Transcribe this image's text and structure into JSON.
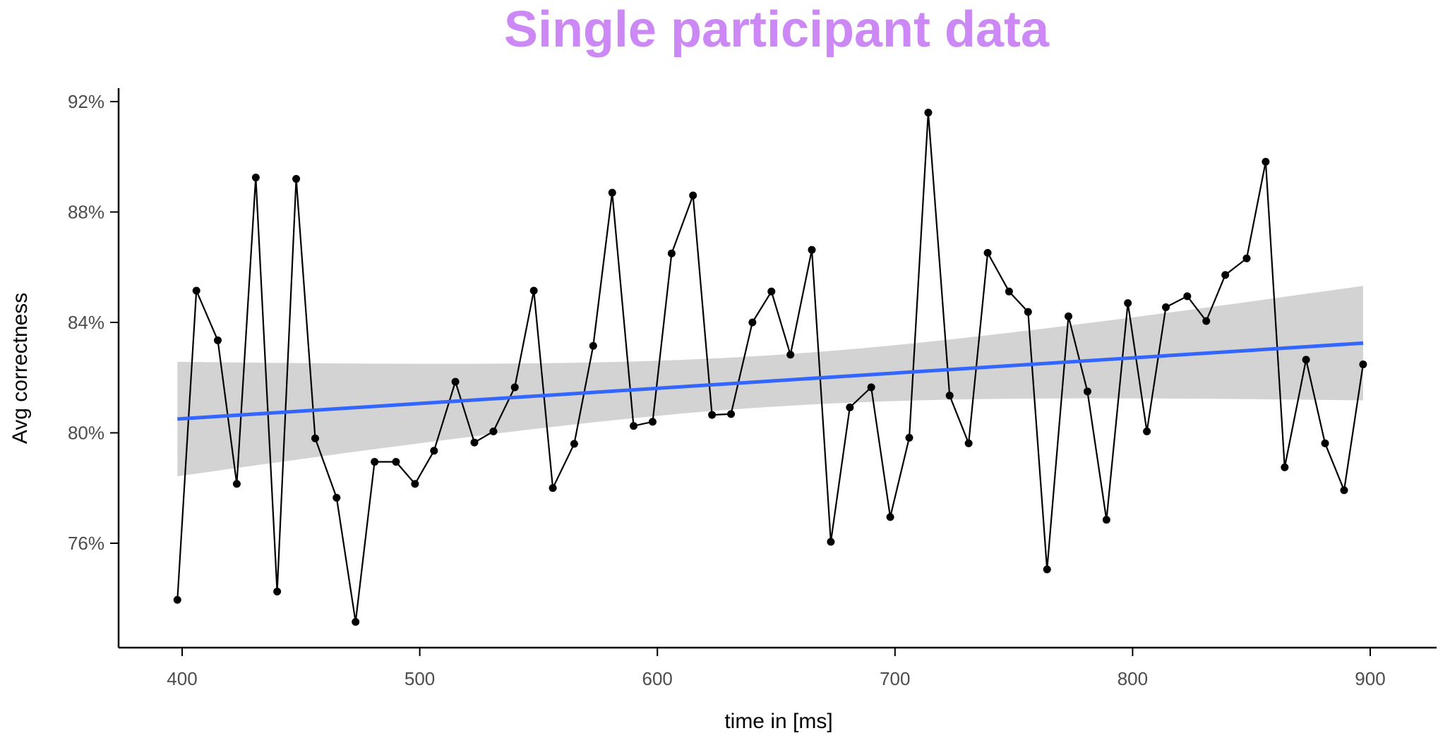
{
  "chart_data": {
    "type": "line",
    "title": "Single participant data",
    "xlabel": "time in [ms]",
    "ylabel": "Avg correctness",
    "xlim": [
      375,
      920
    ],
    "ylim": [
      0.71,
      0.93
    ],
    "x_ticks": [
      400,
      500,
      600,
      700,
      800,
      900
    ],
    "x_tick_labels": [
      "400",
      "500",
      "600",
      "700",
      "800",
      "900"
    ],
    "y_ticks": [
      0.76,
      0.8,
      0.84,
      0.88,
      0.92
    ],
    "y_tick_labels": [
      "76%",
      "80%",
      "84%",
      "88%",
      "92%"
    ],
    "grid": false,
    "legend": "none",
    "colors": {
      "title": "#cc88f5",
      "line": "#000000",
      "points": "#000000",
      "trend": "#3366ff",
      "ribbon": "#d3d3d3",
      "axis": "#000000"
    },
    "series": [
      {
        "x": [
          398,
          406,
          415,
          423,
          431,
          440,
          448,
          456,
          465,
          473,
          481,
          490,
          498,
          506,
          515,
          523,
          531,
          540,
          548,
          556,
          565,
          573,
          581,
          590,
          598,
          606,
          615,
          623,
          631,
          640,
          648,
          656,
          665,
          673,
          681,
          690,
          698,
          706,
          714,
          723,
          731,
          739,
          748,
          756,
          764,
          773,
          781,
          789,
          798,
          806,
          814,
          823,
          831,
          839,
          848,
          856,
          864,
          873,
          881,
          889,
          897
        ],
        "values": [
          0.7395,
          0.8515,
          0.8335,
          0.7815,
          0.8925,
          0.7425,
          0.892,
          0.798,
          0.7765,
          0.7315,
          0.7895,
          0.7895,
          0.7815,
          0.7935,
          0.8185,
          0.7965,
          0.8005,
          0.8165,
          0.8515,
          0.78,
          0.796,
          0.8315,
          0.887,
          0.8025,
          0.804,
          0.865,
          0.886,
          0.8065,
          0.8068,
          0.84,
          0.8512,
          0.8283,
          0.8663,
          0.7605,
          0.8092,
          0.8165,
          0.7695,
          0.7982,
          0.916,
          0.8135,
          0.7962,
          0.8652,
          0.8512,
          0.8438,
          0.7505,
          0.8422,
          0.815,
          0.7685,
          0.847,
          0.8005,
          0.8455,
          0.8495,
          0.8405,
          0.8572,
          0.8632,
          0.8982,
          0.7875,
          0.8265,
          0.7962,
          0.7792,
          0.8248
        ]
      }
    ],
    "trend": {
      "method": "linear",
      "x": [
        398,
        897
      ],
      "values": [
        0.805,
        0.8325
      ],
      "ci_lower": [
        0.784,
        0.8125
      ],
      "ci_upper": [
        0.8255,
        0.8535
      ]
    }
  }
}
